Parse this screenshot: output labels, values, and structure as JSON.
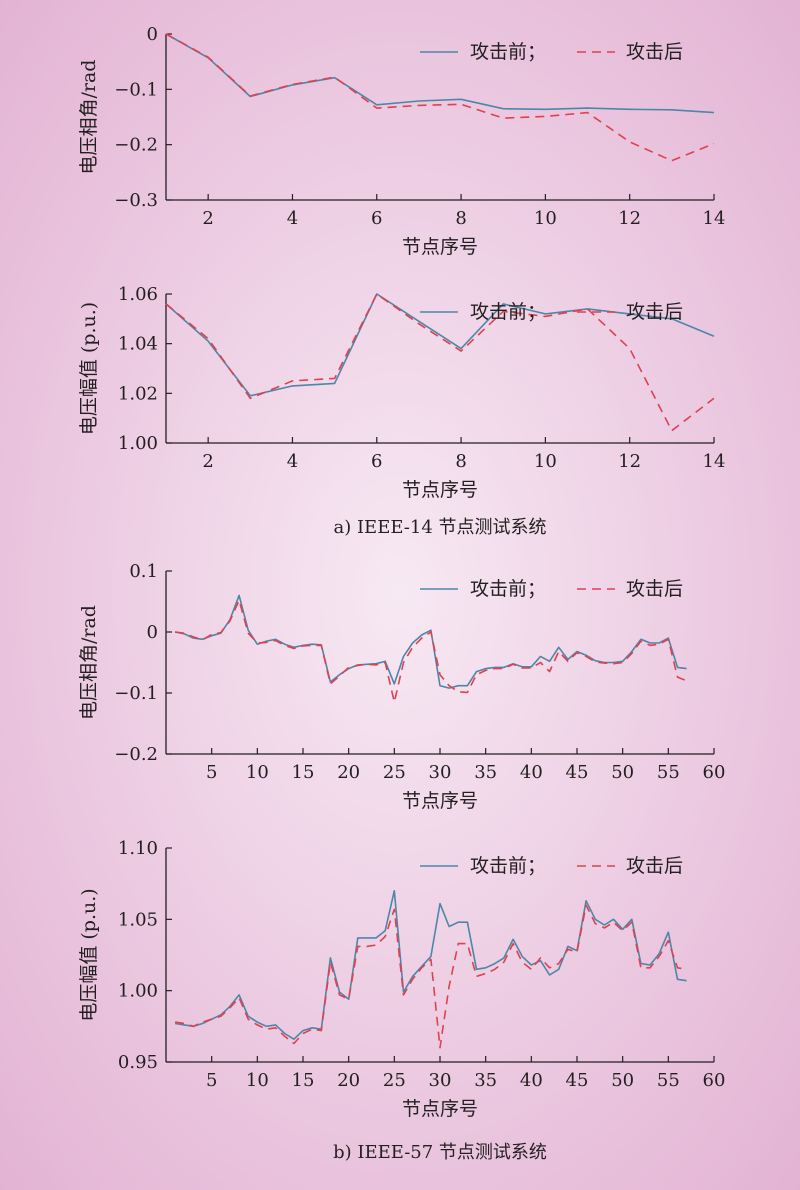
{
  "figure": {
    "caption_a": "a) IEEE-14 节点测试系统",
    "caption_b": "b) IEEE-57 节点测试系统"
  },
  "colors": {
    "before": "#4e86a8",
    "after": "#e0404f",
    "axis": "#231f20"
  },
  "chart_data": [
    {
      "type": "line",
      "xlabel": "节点序号",
      "ylabel": "电压相角/rad",
      "xlim": [
        1,
        14
      ],
      "ylim": [
        -0.3,
        0
      ],
      "xticks": [
        2,
        4,
        6,
        8,
        10,
        12,
        14
      ],
      "yticks": [
        0,
        -0.1,
        -0.2,
        -0.3
      ],
      "ytick_labels": [
        "0",
        "−0.1",
        "−0.2",
        "−0.3"
      ],
      "legend": {
        "placement": "top-right",
        "separator": "；"
      },
      "x": [
        1,
        2,
        3,
        4,
        5,
        6,
        7,
        8,
        9,
        10,
        11,
        12,
        13,
        14
      ],
      "series": [
        {
          "name": "攻击前",
          "style": "solid",
          "values": [
            0,
            -0.043,
            -0.113,
            -0.092,
            -0.079,
            -0.128,
            -0.121,
            -0.118,
            -0.135,
            -0.136,
            -0.134,
            -0.136,
            -0.137,
            -0.142
          ]
        },
        {
          "name": "攻击后",
          "style": "dashed",
          "values": [
            0,
            -0.042,
            -0.112,
            -0.091,
            -0.078,
            -0.134,
            -0.129,
            -0.127,
            -0.152,
            -0.149,
            -0.142,
            -0.195,
            -0.229,
            -0.198
          ]
        }
      ]
    },
    {
      "type": "line",
      "xlabel": "节点序号",
      "ylabel": "电压幅值 (p.u.)",
      "xlim": [
        1,
        14
      ],
      "ylim": [
        1.0,
        1.06
      ],
      "xticks": [
        2,
        4,
        6,
        8,
        10,
        12,
        14
      ],
      "yticks": [
        1.0,
        1.02,
        1.04,
        1.06
      ],
      "ytick_labels": [
        "1.00",
        "1.02",
        "1.04",
        "1.06"
      ],
      "legend": {
        "placement": "top-right",
        "separator": "；"
      },
      "x": [
        1,
        2,
        3,
        4,
        5,
        6,
        7,
        8,
        9,
        10,
        11,
        12,
        13,
        14
      ],
      "series": [
        {
          "name": "攻击前",
          "style": "solid",
          "values": [
            1.056,
            1.041,
            1.019,
            1.023,
            1.024,
            1.06,
            1.049,
            1.038,
            1.056,
            1.052,
            1.054,
            1.052,
            1.05,
            1.043
          ]
        },
        {
          "name": "攻击后",
          "style": "dashed",
          "values": [
            1.056,
            1.042,
            1.018,
            1.025,
            1.026,
            1.06,
            1.048,
            1.037,
            1.053,
            1.051,
            1.054,
            1.038,
            1.005,
            1.018
          ]
        }
      ]
    },
    {
      "type": "line",
      "xlabel": "节点序号",
      "ylabel": "电压相角/rad",
      "xlim": [
        0,
        60
      ],
      "ylim": [
        -0.2,
        0.1
      ],
      "xticks": [
        5,
        10,
        15,
        20,
        25,
        30,
        35,
        40,
        45,
        50,
        55,
        60
      ],
      "yticks": [
        0.1,
        0,
        -0.1,
        -0.2
      ],
      "ytick_labels": [
        "0.1",
        "0",
        "−0.1",
        "−0.2"
      ],
      "legend": {
        "placement": "top-right",
        "separator": "；"
      },
      "x": [
        1,
        2,
        3,
        4,
        5,
        6,
        7,
        8,
        9,
        10,
        11,
        12,
        13,
        14,
        15,
        16,
        17,
        18,
        19,
        20,
        21,
        22,
        23,
        24,
        25,
        26,
        27,
        28,
        29,
        30,
        31,
        32,
        33,
        34,
        35,
        36,
        37,
        38,
        39,
        40,
        41,
        42,
        43,
        44,
        45,
        46,
        47,
        48,
        49,
        50,
        51,
        52,
        53,
        54,
        55,
        56,
        57
      ],
      "series": [
        {
          "name": "攻击前",
          "style": "solid",
          "values": [
            0,
            -0.003,
            -0.01,
            -0.012,
            -0.006,
            -0.002,
            0.02,
            0.06,
            0.003,
            -0.02,
            -0.015,
            -0.012,
            -0.02,
            -0.025,
            -0.022,
            -0.02,
            -0.021,
            -0.082,
            -0.07,
            -0.06,
            -0.054,
            -0.053,
            -0.052,
            -0.048,
            -0.085,
            -0.04,
            -0.018,
            -0.005,
            0.003,
            -0.088,
            -0.092,
            -0.088,
            -0.088,
            -0.065,
            -0.06,
            -0.058,
            -0.058,
            -0.052,
            -0.057,
            -0.057,
            -0.04,
            -0.048,
            -0.025,
            -0.045,
            -0.032,
            -0.038,
            -0.047,
            -0.05,
            -0.05,
            -0.048,
            -0.032,
            -0.012,
            -0.018,
            -0.018,
            -0.01,
            -0.058,
            -0.06
          ]
        },
        {
          "name": "攻击后",
          "style": "dashed",
          "values": [
            0,
            -0.002,
            -0.008,
            -0.013,
            -0.004,
            -0.001,
            0.018,
            0.052,
            -0.002,
            -0.018,
            -0.017,
            -0.014,
            -0.022,
            -0.027,
            -0.023,
            -0.022,
            -0.022,
            -0.085,
            -0.072,
            -0.058,
            -0.055,
            -0.053,
            -0.054,
            -0.05,
            -0.115,
            -0.05,
            -0.025,
            -0.01,
            0,
            -0.07,
            -0.088,
            -0.098,
            -0.099,
            -0.07,
            -0.063,
            -0.06,
            -0.06,
            -0.053,
            -0.059,
            -0.059,
            -0.05,
            -0.065,
            -0.032,
            -0.048,
            -0.034,
            -0.04,
            -0.049,
            -0.051,
            -0.052,
            -0.05,
            -0.035,
            -0.015,
            -0.022,
            -0.02,
            -0.012,
            -0.074,
            -0.08
          ]
        }
      ]
    },
    {
      "type": "line",
      "xlabel": "节点序号",
      "ylabel": "电压幅值 (p.u.)",
      "xlim": [
        0,
        60
      ],
      "ylim": [
        0.95,
        1.1
      ],
      "xticks": [
        5,
        10,
        15,
        20,
        25,
        30,
        35,
        40,
        45,
        50,
        55,
        60
      ],
      "yticks": [
        1.1,
        1.05,
        1.0,
        0.95
      ],
      "ytick_labels": [
        "1.10",
        "1.05",
        "1.00",
        "0.95"
      ],
      "legend": {
        "placement": "top-right",
        "separator": "；"
      },
      "x": [
        1,
        2,
        3,
        4,
        5,
        6,
        7,
        8,
        9,
        10,
        11,
        12,
        13,
        14,
        15,
        16,
        17,
        18,
        19,
        20,
        21,
        22,
        23,
        24,
        25,
        26,
        27,
        28,
        29,
        30,
        31,
        32,
        33,
        34,
        35,
        36,
        37,
        38,
        39,
        40,
        41,
        42,
        43,
        44,
        45,
        46,
        47,
        48,
        49,
        50,
        51,
        52,
        53,
        54,
        55,
        56,
        57
      ],
      "series": [
        {
          "name": "攻击前",
          "style": "solid",
          "values": [
            0.977,
            0.976,
            0.975,
            0.977,
            0.98,
            0.983,
            0.989,
            0.997,
            0.982,
            0.978,
            0.975,
            0.976,
            0.97,
            0.966,
            0.972,
            0.974,
            0.973,
            1.023,
            0.999,
            0.994,
            1.037,
            1.037,
            1.037,
            1.042,
            1.07,
            0.999,
            1.01,
            1.017,
            1.024,
            1.061,
            1.045,
            1.048,
            1.048,
            1.015,
            1.016,
            1.019,
            1.023,
            1.036,
            1.024,
            1.018,
            1.021,
            1.011,
            1.015,
            1.031,
            1.028,
            1.063,
            1.05,
            1.046,
            1.05,
            1.043,
            1.05,
            1.019,
            1.018,
            1.026,
            1.041,
            1.008,
            1.007
          ]
        },
        {
          "name": "攻击后",
          "style": "dashed",
          "values": [
            0.978,
            0.977,
            0.975,
            0.978,
            0.98,
            0.982,
            0.988,
            0.995,
            0.98,
            0.976,
            0.973,
            0.974,
            0.968,
            0.963,
            0.97,
            0.973,
            0.972,
            1.02,
            0.997,
            0.994,
            1.031,
            1.031,
            1.032,
            1.038,
            1.057,
            0.997,
            1.008,
            1.016,
            1.022,
            0.96,
            1.003,
            1.033,
            1.033,
            1.01,
            1.012,
            1.015,
            1.02,
            1.033,
            1.02,
            1.015,
            1.023,
            1.016,
            1.019,
            1.029,
            1.027,
            1.06,
            1.047,
            1.044,
            1.048,
            1.042,
            1.048,
            1.016,
            1.016,
            1.024,
            1.035,
            1.016,
            1.015
          ]
        }
      ]
    }
  ]
}
